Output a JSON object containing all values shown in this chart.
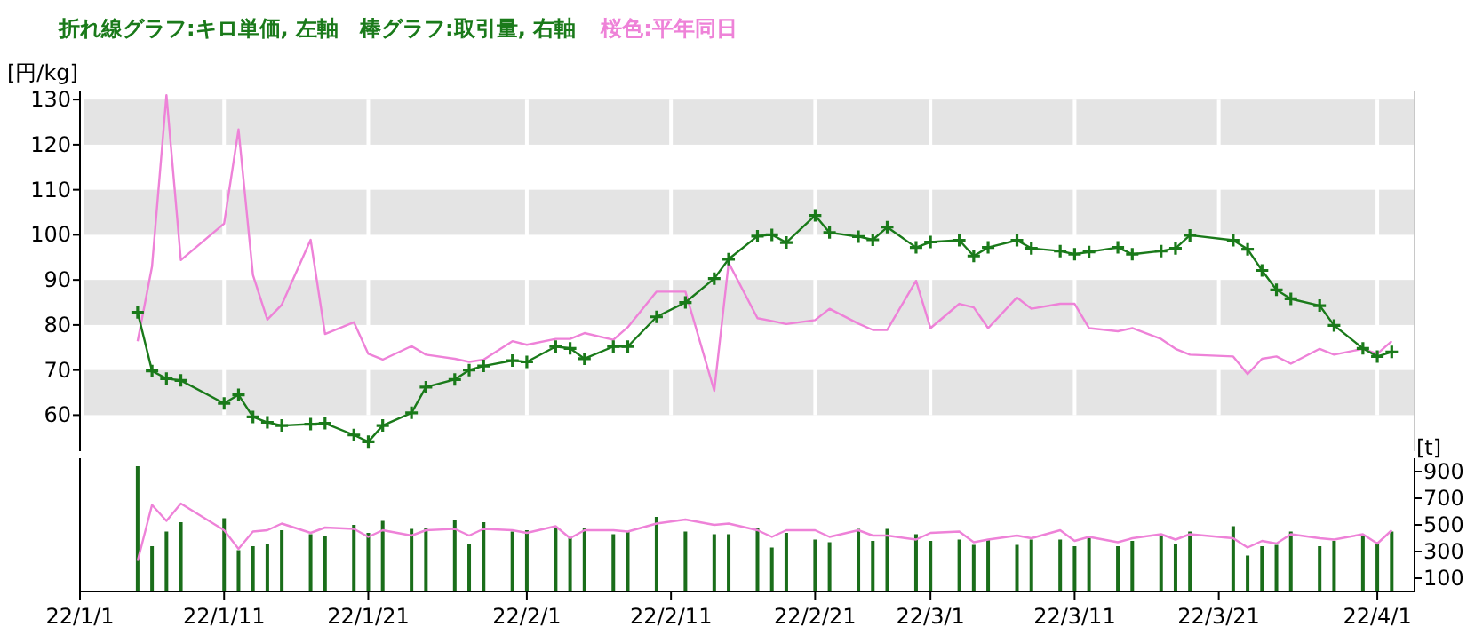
{
  "chart_data": [
    {
      "type": "line",
      "title": "折れ線グラフ:キロ単価, 左軸　棒グラフ:取引量, 右軸",
      "subtitle": "桜色:平年同日",
      "ylabel": "[円/kg]",
      "tick_labels": "y",
      "grid": true,
      "xlim": [
        "--01-01",
        "--04-03T14:00"
      ],
      "xticks": [
        {
          "value": "--01-01",
          "label": null
        },
        {
          "value": "--01-11",
          "label": null
        },
        {
          "value": "--01-21",
          "label": null
        },
        {
          "value": "--02-01",
          "label": null
        },
        {
          "value": "--02-11",
          "label": null
        },
        {
          "value": "--02-21",
          "label": null
        },
        {
          "value": "--03-01",
          "label": null
        },
        {
          "value": "--03-11",
          "label": null
        },
        {
          "value": "--03-21",
          "label": null
        },
        {
          "value": "--04-01",
          "label": null
        }
      ],
      "ylim": [
        52,
        132
      ],
      "yticks": [
        60,
        70,
        80,
        90,
        100,
        110,
        120,
        130
      ],
      "x": [
        "--01-05",
        "--01-06",
        "--01-07",
        "--01-08",
        "--01-11",
        "--01-12",
        "--01-13",
        "--01-14",
        "--01-15",
        "--01-17",
        "--01-18",
        "--01-20",
        "--01-21",
        "--01-22",
        "--01-24",
        "--01-25",
        "--01-27",
        "--01-28",
        "--01-29",
        "--01-31",
        "--02-01",
        "--02-03",
        "--02-04",
        "--02-05",
        "--02-07",
        "--02-08",
        "--02-10",
        "--02-12",
        "--02-14",
        "--02-15",
        "--02-17",
        "--02-18",
        "--02-19",
        "--02-21",
        "--02-22",
        "--02-24",
        "--02-25",
        "--02-26",
        "--02-28",
        "--03-01",
        "--03-03",
        "--03-04",
        "--03-05",
        "--03-07",
        "--03-08",
        "--03-10",
        "--03-11",
        "--03-12",
        "--03-14",
        "--03-15",
        "--03-17",
        "--03-18",
        "--03-19",
        "--03-22",
        "--03-23",
        "--03-24",
        "--03-25",
        "--03-26",
        "--03-28",
        "--03-29",
        "--03-31",
        "--04-01",
        "--04-02"
      ],
      "series": [
        {
          "color": "#ee82d8",
          "marker": "none",
          "values": [
            76.4,
            93.0,
            131,
            94.4,
            102.5,
            123.4,
            91.1,
            81.2,
            84.5,
            98.9,
            78.0,
            80.6,
            73.6,
            72.3,
            75.3,
            73.4,
            72.5,
            71.8,
            72.3,
            76.4,
            75.6,
            76.9,
            76.9,
            78.2,
            76.7,
            79.5,
            87.4,
            87.4,
            65.4,
            93.8,
            81.5,
            80.9,
            80.2,
            81.1,
            83.6,
            80.3,
            78.9,
            78.9,
            89.8,
            79.3,
            84.7,
            83.9,
            79.3,
            86.1,
            83.6,
            84.7,
            84.7,
            79.3,
            78.6,
            79.3,
            76.9,
            74.7,
            73.4,
            73.0,
            69.1,
            72.5,
            73.0,
            71.4,
            74.7,
            73.4,
            74.7,
            73.6,
            76.4
          ]
        },
        {
          "color": "#1a7a1a",
          "marker": "cross",
          "values": [
            82.8,
            69.8,
            68.1,
            67.7,
            62.6,
            64.5,
            59.6,
            58.4,
            57.7,
            58.0,
            58.2,
            55.6,
            54.1,
            57.7,
            60.5,
            66.2,
            67.9,
            70.0,
            70.9,
            72.1,
            71.8,
            75.2,
            74.8,
            72.5,
            75.2,
            75.2,
            81.8,
            85.0,
            90.3,
            94.6,
            99.7,
            100.0,
            98.3,
            104.3,
            100.5,
            99.6,
            98.9,
            101.7,
            97.2,
            98.4,
            98.8,
            95.3,
            97.2,
            98.8,
            97.0,
            96.4,
            95.7,
            96.2,
            97.2,
            95.7,
            96.4,
            97.0,
            99.9,
            98.8,
            96.8,
            92.1,
            87.8,
            85.8,
            84.3,
            79.9,
            74.8,
            73.0,
            74.0
          ]
        }
      ]
    },
    {
      "type": "bar",
      "y2label": "[t]",
      "xlim": [
        "--01-01",
        "--04-03T14:00"
      ],
      "xticks": [
        {
          "value": "--01-01",
          "label": "22/1/1"
        },
        {
          "value": "--01-11",
          "label": "22/1/11"
        },
        {
          "value": "--01-21",
          "label": "22/1/21"
        },
        {
          "value": "--02-01",
          "label": "22/2/1"
        },
        {
          "value": "--02-11",
          "label": "22/2/11"
        },
        {
          "value": "--02-21",
          "label": "22/2/21"
        },
        {
          "value": "--03-01",
          "label": "22/3/1"
        },
        {
          "value": "--03-11",
          "label": "22/3/11"
        },
        {
          "value": "--03-21",
          "label": "22/3/21"
        },
        {
          "value": "--04-01",
          "label": "22/4/1"
        }
      ],
      "y2lim": [
        0,
        1000
      ],
      "y2ticks": [
        100,
        300,
        500,
        700,
        900
      ],
      "x": [
        "--01-05",
        "--01-06",
        "--01-07",
        "--01-08",
        "--01-11",
        "--01-12",
        "--01-13",
        "--01-14",
        "--01-15",
        "--01-17",
        "--01-18",
        "--01-20",
        "--01-21",
        "--01-22",
        "--01-24",
        "--01-25",
        "--01-27",
        "--01-28",
        "--01-29",
        "--01-31",
        "--02-01",
        "--02-03",
        "--02-04",
        "--02-05",
        "--02-07",
        "--02-08",
        "--02-10",
        "--02-12",
        "--02-14",
        "--02-15",
        "--02-17",
        "--02-18",
        "--02-19",
        "--02-21",
        "--02-22",
        "--02-24",
        "--02-25",
        "--02-26",
        "--02-28",
        "--03-01",
        "--03-03",
        "--03-04",
        "--03-05",
        "--03-07",
        "--03-08",
        "--03-10",
        "--03-11",
        "--03-12",
        "--03-14",
        "--03-15",
        "--03-17",
        "--03-18",
        "--03-19",
        "--03-22",
        "--03-23",
        "--03-24",
        "--03-25",
        "--03-26",
        "--03-28",
        "--03-29",
        "--03-31",
        "--04-01",
        "--04-02"
      ],
      "series": [
        {
          "axis": "y2",
          "color": "#1a6e1a",
          "values": [
            940,
            340,
            450,
            520,
            550,
            310,
            340,
            360,
            460,
            430,
            420,
            500,
            440,
            530,
            470,
            480,
            540,
            360,
            520,
            450,
            460,
            480,
            400,
            480,
            430,
            450,
            560,
            450,
            430,
            430,
            480,
            330,
            440,
            390,
            370,
            470,
            380,
            470,
            430,
            380,
            390,
            350,
            390,
            350,
            390,
            390,
            340,
            400,
            340,
            380,
            420,
            360,
            450,
            490,
            270,
            340,
            350,
            450,
            340,
            380,
            420,
            370,
            450
          ]
        },
        {
          "type": "line",
          "axis": "y2",
          "color": "#ee82d8",
          "values": [
            230,
            650,
            530,
            660,
            460,
            320,
            450,
            460,
            510,
            440,
            480,
            470,
            410,
            460,
            420,
            460,
            470,
            420,
            470,
            460,
            440,
            490,
            400,
            460,
            460,
            450,
            510,
            540,
            500,
            510,
            460,
            410,
            460,
            460,
            410,
            460,
            420,
            420,
            390,
            440,
            450,
            370,
            390,
            420,
            400,
            460,
            380,
            410,
            370,
            400,
            430,
            390,
            430,
            400,
            330,
            380,
            360,
            430,
            400,
            390,
            430,
            360,
            460
          ]
        }
      ]
    }
  ]
}
